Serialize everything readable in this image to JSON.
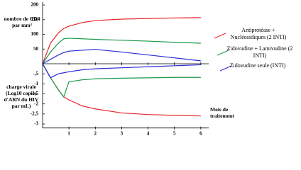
{
  "chart_data": [
    {
      "type": "line",
      "ylabel": "nombre de CD4 par mm³",
      "x": [
        0,
        0.3,
        0.6,
        0.8,
        1,
        1.5,
        2,
        3,
        4,
        5,
        6
      ],
      "xlim": [
        0,
        6.3
      ],
      "ylim": [
        0,
        205
      ],
      "yticks": [
        50,
        100,
        150,
        200
      ],
      "series": [
        {
          "name": "Antiprotéase + Nucléosidiques (2 INTI)",
          "color": "#e8262a",
          "values": [
            0,
            70,
            105,
            120,
            128,
            140,
            147,
            152,
            154,
            156,
            157
          ]
        },
        {
          "name": "Zidovudine + Lamivudine (2 INTI)",
          "color": "#1a9a4a",
          "values": [
            0,
            40,
            70,
            85,
            87,
            85,
            83,
            80,
            77,
            73,
            70
          ]
        },
        {
          "name": "Zidovudine seule (INTI)",
          "color": "#2a2ad8",
          "values": [
            0,
            15,
            30,
            38,
            43,
            46,
            49,
            40,
            30,
            20,
            10
          ]
        }
      ]
    },
    {
      "type": "line",
      "ylabel": "charge virale (Log10 copies d'ARN du HIV par mL)",
      "xlabel": "Mois de traitement",
      "x": [
        0,
        0.3,
        0.6,
        0.8,
        1,
        1.5,
        2,
        3,
        4,
        5,
        6
      ],
      "xlim": [
        0,
        6.3
      ],
      "xticks": [
        1,
        2,
        3,
        4,
        5,
        6
      ],
      "ylim": [
        -3.2,
        0
      ],
      "yticks": [
        {
          "value": -0.5,
          "label": "-,5"
        },
        -1,
        {
          "value": -1.5,
          "label": "-1,5"
        },
        -2,
        {
          "value": -2.5,
          "label": "-2,5"
        },
        -3
      ],
      "series": [
        {
          "color": "#e8262a",
          "values": [
            0,
            -0.7,
            -1.3,
            -1.65,
            -1.8,
            -2.1,
            -2.25,
            -2.45,
            -2.53,
            -2.57,
            -2.6
          ]
        },
        {
          "color": "#1a9a4a",
          "values": [
            0,
            -0.7,
            -1.3,
            -1.65,
            -0.9,
            -0.8,
            -0.75,
            -0.72,
            -0.7,
            -0.68,
            -0.68
          ]
        },
        {
          "color": "#2a2ad8",
          "values": [
            0,
            -0.7,
            -0.5,
            -0.45,
            -0.4,
            -0.3,
            -0.25,
            -0.2,
            -0.15,
            -0.1,
            -0.05
          ]
        }
      ]
    }
  ]
}
